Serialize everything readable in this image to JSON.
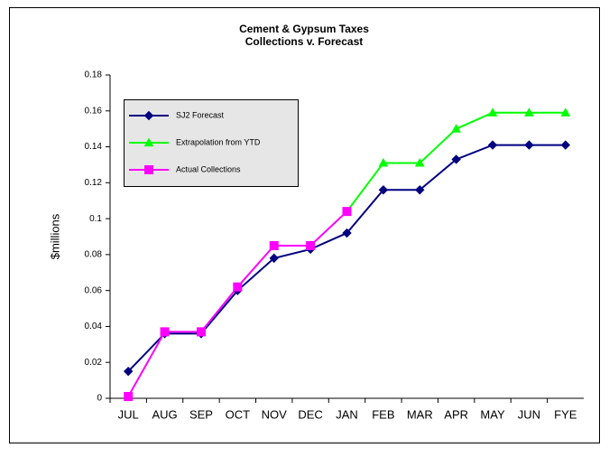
{
  "chart_data": {
    "type": "line",
    "title": "Cement & Gypsum Taxes",
    "subtitle": "Collections v. Forecast",
    "y_label": "$millions",
    "categories": [
      "JUL",
      "AUG",
      "SEP",
      "OCT",
      "NOV",
      "DEC",
      "JAN",
      "FEB",
      "MAR",
      "APR",
      "MAY",
      "JUN",
      "FYE"
    ],
    "series": [
      {
        "name": "SJ2 Forecast",
        "color": "#000080",
        "marker": "diamond",
        "values": [
          0.015,
          0.036,
          0.036,
          0.06,
          0.078,
          0.083,
          0.092,
          0.116,
          0.116,
          0.133,
          0.141,
          0.141,
          0.141
        ]
      },
      {
        "name": "Extrapolation from YTD",
        "color": "#00ff00",
        "marker": "triangle",
        "values": [
          null,
          null,
          null,
          null,
          null,
          null,
          0.104,
          0.131,
          0.131,
          0.15,
          0.159,
          0.159,
          0.159
        ]
      },
      {
        "name": "Actual Collections",
        "color": "#ff00ff",
        "marker": "square",
        "values": [
          0.001,
          0.037,
          0.037,
          0.062,
          0.085,
          0.085,
          0.104,
          null,
          null,
          null,
          null,
          null,
          null
        ]
      }
    ],
    "ylim": [
      0,
      0.18
    ],
    "yticks": [
      0,
      0.02,
      0.04,
      0.06,
      0.08,
      0.1,
      0.12,
      0.14,
      0.16,
      0.18
    ],
    "grid": false,
    "legend": "upper left"
  }
}
